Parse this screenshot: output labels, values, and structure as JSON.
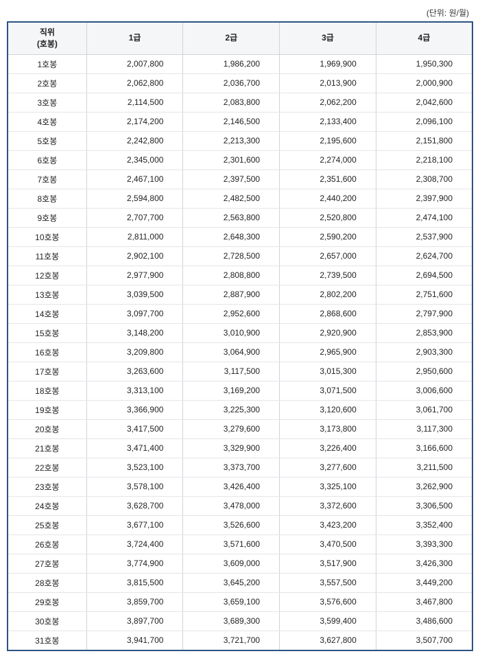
{
  "unit_label": "(단위: 원/월)",
  "salary_table": {
    "type": "table",
    "header_bg": "#f5f6f8",
    "border_color": "#2c5282",
    "grid_color": "#d0d4d9",
    "row_line_color": "#e2e5e9",
    "text_color": "#222222",
    "background_color": "#ffffff",
    "fontsize": 12,
    "header_fontweight": "bold",
    "columns": [
      "직위\n(호봉)",
      "1급",
      "2급",
      "3급",
      "4급"
    ],
    "col_widths": [
      "17%",
      "20.75%",
      "20.75%",
      "20.75%",
      "20.75%"
    ],
    "col_align": [
      "center",
      "right",
      "right",
      "right",
      "right"
    ],
    "rows": [
      [
        "1호봉",
        "2,007,800",
        "1,986,200",
        "1,969,900",
        "1,950,300"
      ],
      [
        "2호봉",
        "2,062,800",
        "2,036,700",
        "2,013,900",
        "2,000,900"
      ],
      [
        "3호봉",
        "2,114,500",
        "2,083,800",
        "2,062,200",
        "2,042,600"
      ],
      [
        "4호봉",
        "2,174,200",
        "2,146,500",
        "2,133,400",
        "2,096,100"
      ],
      [
        "5호봉",
        "2,242,800",
        "2,213,300",
        "2,195,600",
        "2,151,800"
      ],
      [
        "6호봉",
        "2,345,000",
        "2,301,600",
        "2,274,000",
        "2,218,100"
      ],
      [
        "7호봉",
        "2,467,100",
        "2,397,500",
        "2,351,600",
        "2,308,700"
      ],
      [
        "8호봉",
        "2,594,800",
        "2,482,500",
        "2,440,200",
        "2,397,900"
      ],
      [
        "9호봉",
        "2,707,700",
        "2,563,800",
        "2,520,800",
        "2,474,100"
      ],
      [
        "10호봉",
        "2,811,000",
        "2,648,300",
        "2,590,200",
        "2,537,900"
      ],
      [
        "11호봉",
        "2,902,100",
        "2,728,500",
        "2,657,000",
        "2,624,700"
      ],
      [
        "12호봉",
        "2,977,900",
        "2,808,800",
        "2,739,500",
        "2,694,500"
      ],
      [
        "13호봉",
        "3,039,500",
        "2,887,900",
        "2,802,200",
        "2,751,600"
      ],
      [
        "14호봉",
        "3,097,700",
        "2,952,600",
        "2,868,600",
        "2,797,900"
      ],
      [
        "15호봉",
        "3,148,200",
        "3,010,900",
        "2,920,900",
        "2,853,900"
      ],
      [
        "16호봉",
        "3,209,800",
        "3,064,900",
        "2,965,900",
        "2,903,300"
      ],
      [
        "17호봉",
        "3,263,600",
        "3,117,500",
        "3,015,300",
        "2,950,600"
      ],
      [
        "18호봉",
        "3,313,100",
        "3,169,200",
        "3,071,500",
        "3,006,600"
      ],
      [
        "19호봉",
        "3,366,900",
        "3,225,300",
        "3,120,600",
        "3,061,700"
      ],
      [
        "20호봉",
        "3,417,500",
        "3,279,600",
        "3,173,800",
        "3,117,300"
      ],
      [
        "21호봉",
        "3,471,400",
        "3,329,900",
        "3,226,400",
        "3,166,600"
      ],
      [
        "22호봉",
        "3,523,100",
        "3,373,700",
        "3,277,600",
        "3,211,500"
      ],
      [
        "23호봉",
        "3,578,100",
        "3,426,400",
        "3,325,100",
        "3,262,900"
      ],
      [
        "24호봉",
        "3,628,700",
        "3,478,000",
        "3,372,600",
        "3,306,500"
      ],
      [
        "25호봉",
        "3,677,100",
        "3,526,600",
        "3,423,200",
        "3,352,400"
      ],
      [
        "26호봉",
        "3,724,400",
        "3,571,600",
        "3,470,500",
        "3,393,300"
      ],
      [
        "27호봉",
        "3,774,900",
        "3,609,000",
        "3,517,900",
        "3,426,300"
      ],
      [
        "28호봉",
        "3,815,500",
        "3,645,200",
        "3,557,500",
        "3,449,200"
      ],
      [
        "29호봉",
        "3,859,700",
        "3,659,100",
        "3,576,600",
        "3,467,800"
      ],
      [
        "30호봉",
        "3,897,700",
        "3,689,300",
        "3,599,400",
        "3,486,600"
      ],
      [
        "31호봉",
        "3,941,700",
        "3,721,700",
        "3,627,800",
        "3,507,700"
      ]
    ]
  }
}
